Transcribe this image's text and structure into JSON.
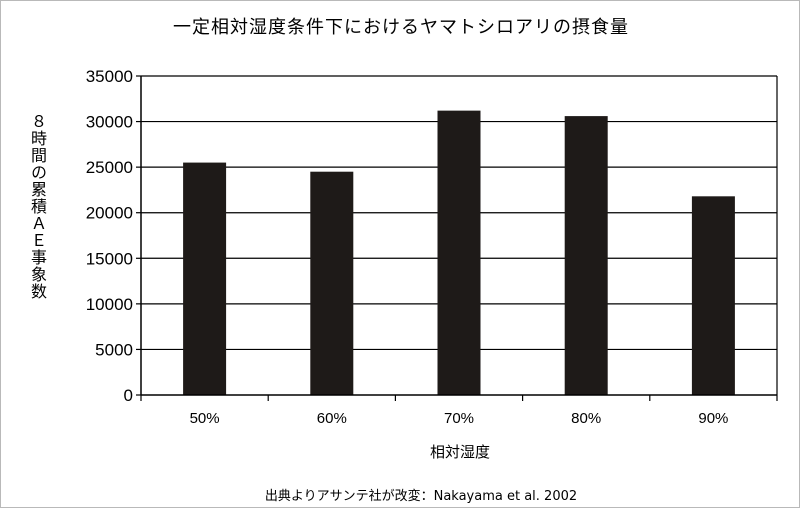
{
  "chart_data": {
    "type": "bar",
    "title": "一定相対湿度条件下におけるヤマトシロアリの摂食量",
    "ylabel": "８時間の累積ＡＥ事象数",
    "xlabel": "相対湿度",
    "categories": [
      "50%",
      "60%",
      "70%",
      "80%",
      "90%"
    ],
    "values": [
      25500,
      24500,
      31200,
      30600,
      21800
    ],
    "ylim": [
      0,
      35000
    ],
    "yticks": [
      0,
      5000,
      10000,
      15000,
      20000,
      25000,
      30000,
      35000
    ],
    "grid": true,
    "bar_color": "#1e1a18"
  },
  "source": "出典よりアサンテ社が改変：Nakayama et al. 2002"
}
